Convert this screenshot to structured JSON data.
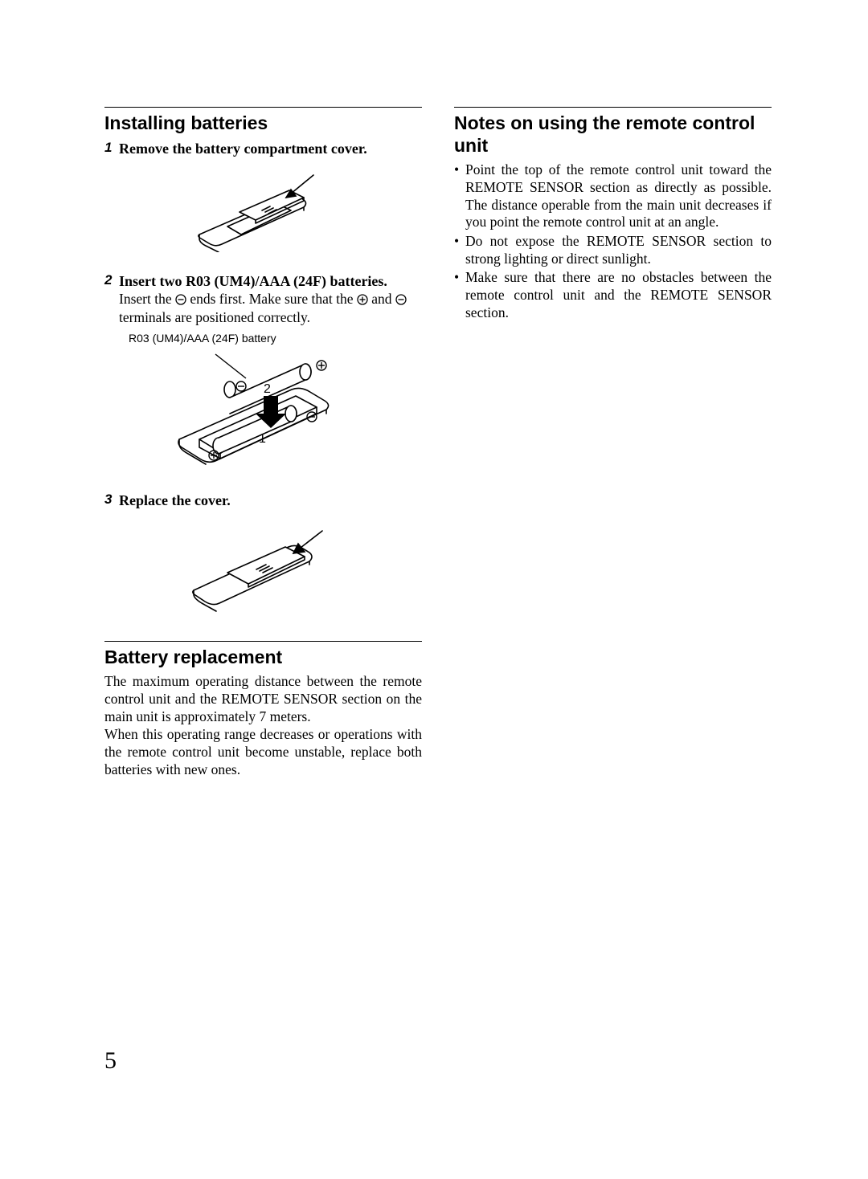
{
  "page_number": "5",
  "left": {
    "section1": {
      "heading": "Installing batteries",
      "steps": [
        {
          "num": "1",
          "title": "Remove the battery compartment cover."
        },
        {
          "num": "2",
          "title": "Insert two R03 (UM4)/AAA (24F) batteries.",
          "desc_pre": "Insert the ",
          "desc_mid1": " ends first. Make sure that the ",
          "desc_mid2": " and ",
          "desc_post": " terminals are positioned correctly.",
          "caption": "R03 (UM4)/AAA (24F) battery"
        },
        {
          "num": "3",
          "title": "Replace the cover."
        }
      ]
    },
    "section2": {
      "heading": "Battery replacement",
      "para": "The maximum operating distance between the remote control unit and the REMOTE SENSOR section on the main unit is approximately 7 meters.\nWhen this operating range decreases or operations with the remote control unit become unstable, replace both batteries with new ones."
    }
  },
  "right": {
    "heading": "Notes on using the remote control unit",
    "bullets": [
      "Point the top of the remote control unit toward the REMOTE SENSOR section as directly as possible. The distance operable from the main unit decreases if you point the remote control unit at an angle.",
      "Do not expose the REMOTE SENSOR section to strong lighting or direct sunlight.",
      "Make sure that there are no obstacles between the remote control unit and the REMOTE SENSOR section."
    ]
  },
  "colors": {
    "stroke": "#000000",
    "fill_white": "#ffffff",
    "fill_black": "#000000"
  }
}
